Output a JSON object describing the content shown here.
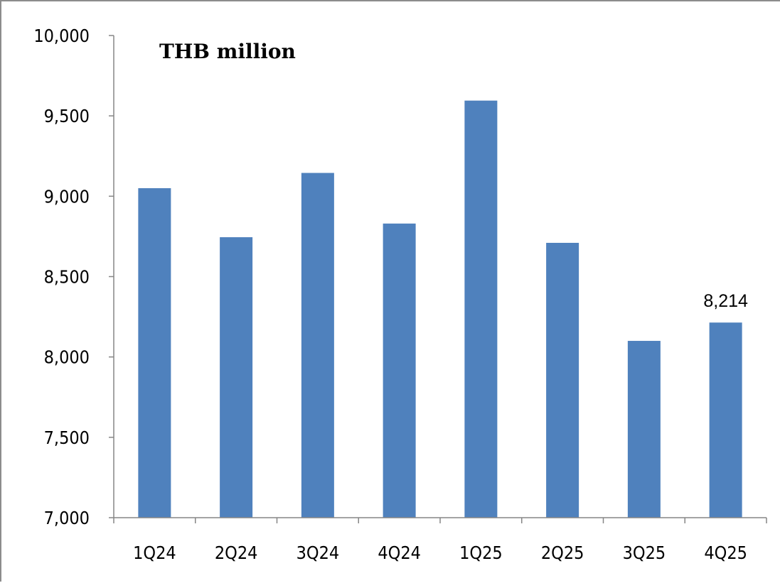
{
  "chart_data": {
    "type": "bar",
    "title": "THB million",
    "xlabel": "",
    "ylabel": "",
    "categories": [
      "1Q24",
      "2Q24",
      "3Q24",
      "4Q24",
      "1Q25",
      "2Q25",
      "3Q25",
      "4Q25"
    ],
    "values": [
      9050,
      8745,
      9145,
      8830,
      9595,
      8710,
      8100,
      8214
    ],
    "ylim": [
      7000,
      10000
    ],
    "yticks": [
      7000,
      7500,
      8000,
      8500,
      9000,
      9500,
      10000
    ],
    "ytick_labels": [
      "7,000",
      "7,500",
      "8,000",
      "8,500",
      "9,000",
      "9,500",
      "10,000"
    ],
    "data_labels": [
      {
        "category": "4Q25",
        "text": "8,214"
      }
    ],
    "bar_color": "#4f81bd",
    "grid": false,
    "legend": "none"
  }
}
